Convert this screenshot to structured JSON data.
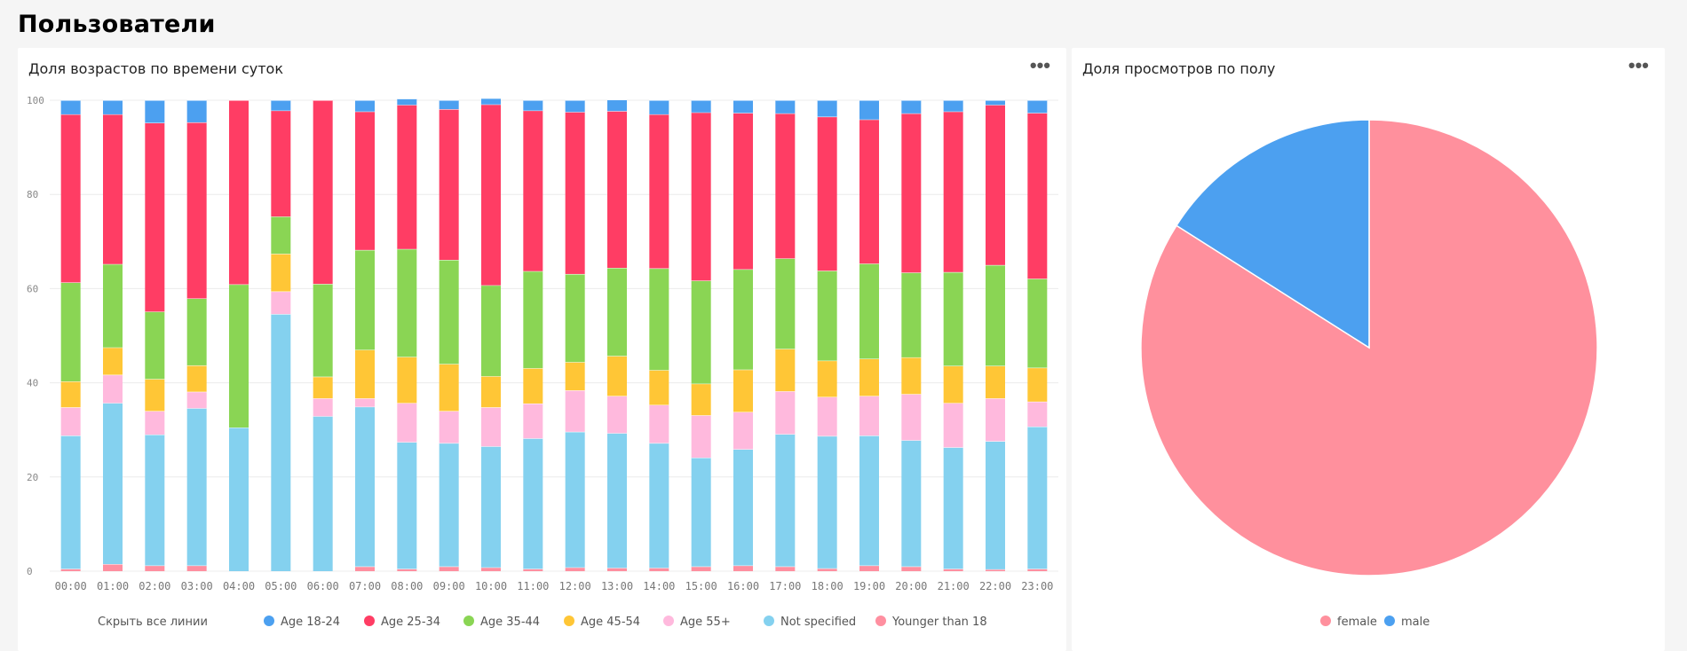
{
  "page": {
    "title": "Пользователи"
  },
  "age_card": {
    "title": "Доля возрастов по времени суток",
    "menu_label": "•••",
    "hide_all_label": "Скрыть все линии"
  },
  "gender_card": {
    "title": "Доля просмотров по полу",
    "menu_label": "•••"
  },
  "colors": {
    "Age 18-24": "#4ca0f0",
    "Age 25-34": "#ff3d64",
    "Age 35-44": "#8ad554",
    "Age 45-54": "#ffc636",
    "Age 55+": "#ffb9dd",
    "Not specified": "#84d1ef",
    "Younger than 18": "#ff8fa0",
    "female": "#ff909d",
    "male": "#4ca0f0"
  },
  "chart_data": [
    {
      "type": "bar",
      "stacked": true,
      "title": "Доля возрастов по времени суток",
      "categories": [
        "00:00",
        "01:00",
        "02:00",
        "03:00",
        "04:00",
        "05:00",
        "06:00",
        "07:00",
        "08:00",
        "09:00",
        "10:00",
        "11:00",
        "12:00",
        "13:00",
        "14:00",
        "15:00",
        "16:00",
        "17:00",
        "18:00",
        "19:00",
        "20:00",
        "21:00",
        "22:00",
        "23:00"
      ],
      "ylim": [
        0,
        100
      ],
      "yticks": [
        0,
        20,
        40,
        60,
        80,
        100
      ],
      "grid": true,
      "legend_position": "bottom",
      "series": [
        {
          "name": "Younger than 18",
          "values": [
            0.5,
            1.5,
            1.2,
            1.2,
            0,
            0,
            0,
            1,
            0.5,
            1,
            0.8,
            0.5,
            0.8,
            0.7,
            0.7,
            1,
            1.2,
            1,
            0.6,
            1.2,
            1,
            0.5,
            0.4,
            0.5
          ]
        },
        {
          "name": "Not specified",
          "values": [
            28.3,
            34.2,
            27.8,
            33.4,
            30.5,
            54.6,
            32.9,
            33.9,
            26.9,
            26.2,
            25.7,
            27.7,
            28.8,
            28.6,
            26.5,
            23.1,
            24.7,
            28.1,
            28.1,
            27.6,
            26.8,
            25.8,
            27.2,
            30.2
          ]
        },
        {
          "name": "Age 55+",
          "values": [
            6,
            6,
            5,
            3.5,
            0,
            4.8,
            3.8,
            1.8,
            8.3,
            6.8,
            8.3,
            7.4,
            8.8,
            7.9,
            8.1,
            9,
            7.9,
            9.1,
            8.3,
            8.4,
            9.8,
            9.4,
            9.1,
            5.3
          ]
        },
        {
          "name": "Age 45-54",
          "values": [
            5.5,
            5.8,
            6.8,
            5.6,
            0,
            8,
            4.6,
            10.3,
            9.8,
            10,
            6.6,
            7.5,
            6,
            8.5,
            7.4,
            6.7,
            9,
            9,
            7.7,
            7.9,
            7.8,
            7.9,
            6.9,
            7.2
          ]
        },
        {
          "name": "Age 35-44",
          "values": [
            21,
            17.7,
            14.3,
            14.2,
            30.4,
            7.9,
            19.7,
            21.2,
            22.9,
            22.1,
            19.3,
            20.6,
            18.7,
            18.7,
            21.6,
            21.9,
            21.3,
            19.2,
            19.1,
            20.2,
            18,
            19.9,
            21.4,
            18.9
          ]
        },
        {
          "name": "Age 25-34",
          "values": [
            35.7,
            31.8,
            40.1,
            37.4,
            39.1,
            22.5,
            39,
            29.4,
            30.6,
            32,
            38.4,
            34.1,
            34.4,
            33.3,
            32.7,
            35.7,
            33.2,
            30.8,
            32.7,
            30.6,
            33.8,
            34.1,
            34,
            35.2
          ]
        },
        {
          "name": "Age 18-24",
          "values": [
            3,
            3,
            4.8,
            4.7,
            0,
            2.2,
            0,
            2.4,
            1.3,
            1.9,
            1.3,
            2.2,
            2.5,
            2.4,
            3,
            2.6,
            2.7,
            2.8,
            3.5,
            4.1,
            2.8,
            2.4,
            1,
            2.7
          ]
        }
      ]
    },
    {
      "type": "pie",
      "title": "Доля просмотров по полу",
      "legend_position": "bottom",
      "series": [
        {
          "name": "female",
          "value": 84
        },
        {
          "name": "male",
          "value": 16
        }
      ]
    }
  ]
}
